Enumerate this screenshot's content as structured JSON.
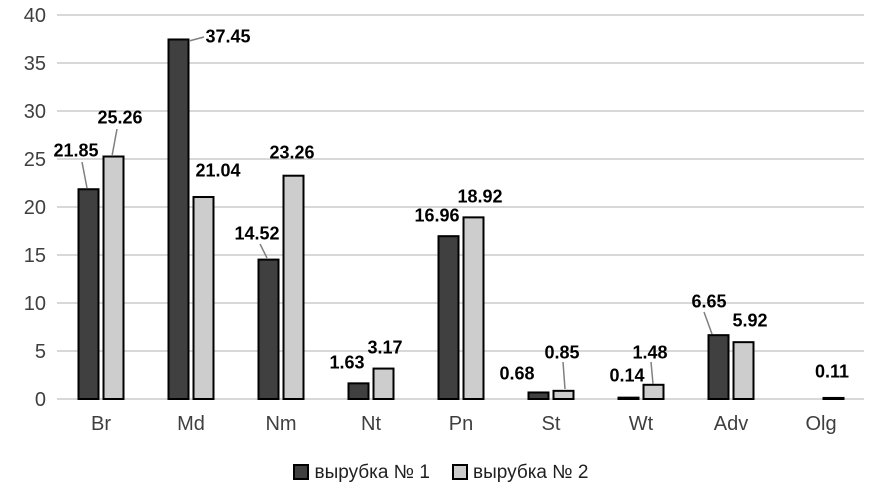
{
  "chart_data": {
    "type": "bar",
    "categories": [
      "Br",
      "Md",
      "Nm",
      "Nt",
      "Pn",
      "St",
      "Wt",
      "Adv",
      "Olg"
    ],
    "series": [
      {
        "name": "вырубка № 1",
        "color": "#404040",
        "values": [
          21.85,
          37.45,
          14.52,
          1.63,
          16.96,
          0.68,
          0.14,
          6.65,
          null
        ]
      },
      {
        "name": "вырубка № 2",
        "color": "#cdcdcd",
        "values": [
          25.26,
          21.04,
          23.26,
          3.17,
          18.92,
          0.85,
          1.48,
          5.92,
          0.11
        ]
      }
    ],
    "ylim": [
      0,
      40
    ],
    "yticks": [
      0,
      5,
      10,
      15,
      20,
      25,
      30,
      35,
      40
    ],
    "grid": "horizontal",
    "legend_position": "bottom",
    "data_labels": true,
    "colors": {
      "grid": "#d2d2d2",
      "axis_text": "#3f3f3f",
      "label_text": "#000000",
      "bar_border": "#000000",
      "leader_line": "#7f7f7f",
      "background": "#ffffff"
    }
  }
}
